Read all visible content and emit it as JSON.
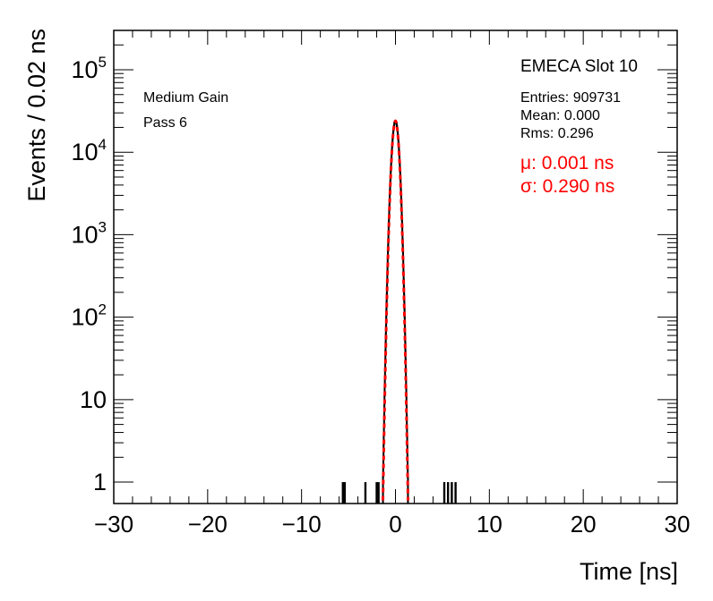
{
  "chart_data": {
    "type": "histogram",
    "xlabel": "Time [ns]",
    "ylabel": "Events / 0.02 ns",
    "xlim": [
      -30,
      30
    ],
    "ylim": [
      0.55,
      300000
    ],
    "y_scale": "log",
    "grid": false,
    "x_ticks": [
      {
        "value": -30,
        "label": "−30"
      },
      {
        "value": -20,
        "label": "−20"
      },
      {
        "value": -10,
        "label": "−10"
      },
      {
        "value": 0,
        "label": "0"
      },
      {
        "value": 10,
        "label": "10"
      },
      {
        "value": 20,
        "label": "20"
      },
      {
        "value": 30,
        "label": "30"
      }
    ],
    "y_ticks": [
      {
        "value": 1,
        "base": "1",
        "exp": ""
      },
      {
        "value": 10,
        "base": "10",
        "exp": ""
      },
      {
        "value": 100,
        "base": "10",
        "exp": "2"
      },
      {
        "value": 1000,
        "base": "10",
        "exp": "3"
      },
      {
        "value": 10000,
        "base": "10",
        "exp": "4"
      },
      {
        "value": 100000,
        "base": "10",
        "exp": "5"
      }
    ],
    "annotations": {
      "left": [
        "Medium Gain",
        "Pass 6"
      ],
      "title": "EMECA Slot 10",
      "stats": [
        "Entries: 909731",
        "Mean: 0.000",
        "Rms: 0.296"
      ],
      "fit": [
        "μ: 0.001 ns",
        "σ: 0.290 ns"
      ]
    },
    "fit_color": "#ff0000",
    "histogram_color": "#000000",
    "series": [
      {
        "kind": "histogram",
        "bin_width": 0.02,
        "central": {
          "mu": 0.0,
          "sigma": 0.296,
          "peak": 24000,
          "min_count": 1
        },
        "outliers": [
          {
            "x": -5.6,
            "count": 1
          },
          {
            "x": -5.4,
            "count": 1
          },
          {
            "x": -3.2,
            "count": 1
          },
          {
            "x": -2.0,
            "count": 1
          },
          {
            "x": -1.8,
            "count": 1
          },
          {
            "x": 5.2,
            "count": 1
          },
          {
            "x": 5.6,
            "count": 1
          },
          {
            "x": 6.0,
            "count": 1
          },
          {
            "x": 6.4,
            "count": 1
          }
        ]
      },
      {
        "kind": "fit",
        "function": "gaussian",
        "mu": 0.001,
        "sigma": 0.29,
        "amplitude": 24000
      }
    ]
  }
}
